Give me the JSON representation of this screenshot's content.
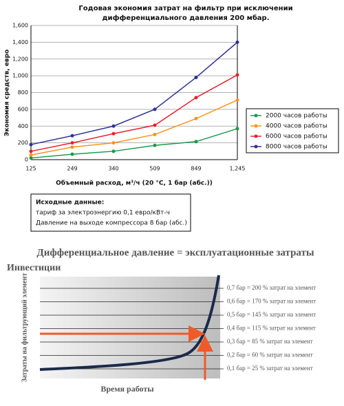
{
  "chart_data": [
    {
      "type": "line",
      "title": "Годовая экономия затрат на фильтр при исключении",
      "subtitle": "дифференциального давления 200 мбар.",
      "y_label": "Экономия средств, евро",
      "x_label": "Объемный расход, м³/ч (20 °C, 1 бар (абс.))",
      "categories": [
        "125",
        "249",
        "340",
        "509",
        "849",
        "1,245"
      ],
      "ylim": [
        0,
        1600
      ],
      "yticks": [
        0,
        200,
        400,
        600,
        800,
        {
          "value": 1000,
          "label": "1,000"
        },
        {
          "value": 1200,
          "label": "1,200"
        },
        {
          "value": 1400,
          "label": "1,400"
        },
        {
          "value": 1600,
          "label": "1,600"
        }
      ],
      "grid": true,
      "legend": "right",
      "series": [
        {
          "name": "2000 часов работы",
          "color": "#1a9a4a",
          "values": [
            20,
            65,
            100,
            170,
            215,
            370
          ]
        },
        {
          "name": "4000 часов работы",
          "color": "#f7941d",
          "values": [
            55,
            150,
            200,
            300,
            490,
            710
          ]
        },
        {
          "name": "6000 часов работы",
          "color": "#e8202a",
          "values": [
            100,
            200,
            310,
            410,
            740,
            1010
          ]
        },
        {
          "name": "8000 часов работы",
          "color": "#2e3192",
          "values": [
            180,
            285,
            400,
            600,
            980,
            1400
          ]
        }
      ],
      "note": {
        "title": "Исходные данные:",
        "lines": [
          "тариф за электроэнергию 0,1 евро/кВт-ч",
          "Давление на выходе компрессора 8 бар (абс.)"
        ]
      }
    },
    {
      "type": "curve",
      "title": "Дифференциальное давление = эксплуатационные затраты",
      "subtitle": "Инвестиции",
      "y_label": "Затраты на фильтрующий элемент",
      "x_label": "Время работы",
      "levels": [
        "0,7 бар = 200 % затрат на элемент",
        "0,6 бар = 170 % затрат на элемент",
        "0,5 бар = 145 % затрат на элемент",
        "0,4 бар = 115 % затрат на элемент",
        "0,3 бар = 85 % затрат на элемент",
        "0,2 бар = 60 % затрат на элемент",
        "0,1 бар = 25 % затрат на элемент"
      ]
    }
  ]
}
